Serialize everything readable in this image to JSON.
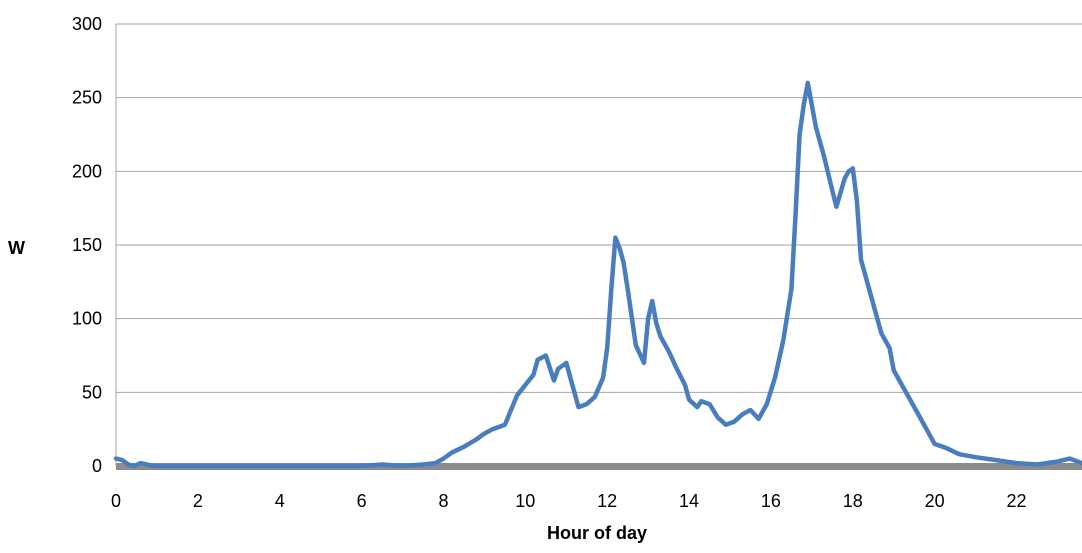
{
  "chart_data": {
    "type": "line",
    "title": "",
    "xlabel": "Hour of day",
    "ylabel": "W",
    "xlim": [
      0,
      23.6
    ],
    "ylim": [
      0,
      300
    ],
    "x_ticks": [
      0,
      2,
      4,
      6,
      8,
      10,
      12,
      14,
      16,
      18,
      20,
      22
    ],
    "y_ticks": [
      0,
      50,
      100,
      150,
      200,
      250,
      300
    ],
    "grid": "horizontal",
    "colors": {
      "series": "#4a7dbe",
      "grid": "#a6a6a6",
      "baseline": "#8c8c8c"
    },
    "series": [
      {
        "x": [
          0,
          0.15,
          0.3,
          0.45,
          0.6,
          0.75,
          0.9,
          1.0,
          2.0,
          4.0,
          6.0,
          6.5,
          7.0,
          7.5,
          7.8,
          8.0,
          8.2,
          8.5,
          8.8,
          9.0,
          9.2,
          9.5,
          9.8,
          10.0,
          10.2,
          10.3,
          10.5,
          10.7,
          10.8,
          11.0,
          11.1,
          11.3,
          11.5,
          11.7,
          11.9,
          12.0,
          12.1,
          12.2,
          12.3,
          12.4,
          12.5,
          12.7,
          12.9,
          13.0,
          13.1,
          13.2,
          13.3,
          13.5,
          13.7,
          13.9,
          14.0,
          14.2,
          14.3,
          14.5,
          14.7,
          14.9,
          15.1,
          15.3,
          15.5,
          15.7,
          15.9,
          16.1,
          16.3,
          16.5,
          16.6,
          16.7,
          16.8,
          16.9,
          17.0,
          17.1,
          17.3,
          17.5,
          17.6,
          17.8,
          17.9,
          18.0,
          18.1,
          18.2,
          18.3,
          18.5,
          18.7,
          18.9,
          19.0,
          19.2,
          19.4,
          19.6,
          19.8,
          20.0,
          20.3,
          20.6,
          21.0,
          21.5,
          22.0,
          22.5,
          23.0,
          23.3,
          23.6
        ],
        "y": [
          5,
          4,
          1,
          0,
          2,
          1,
          0,
          0,
          0,
          0,
          0,
          1,
          0,
          1,
          2,
          5,
          9,
          13,
          18,
          22,
          25,
          28,
          48,
          55,
          62,
          72,
          75,
          58,
          66,
          70,
          60,
          40,
          42,
          47,
          60,
          80,
          120,
          155,
          148,
          138,
          120,
          82,
          70,
          100,
          112,
          97,
          88,
          78,
          66,
          55,
          45,
          40,
          44,
          42,
          33,
          28,
          30,
          35,
          38,
          32,
          42,
          60,
          85,
          120,
          170,
          225,
          245,
          260,
          245,
          230,
          210,
          187,
          176,
          195,
          200,
          202,
          180,
          140,
          130,
          110,
          90,
          80,
          65,
          55,
          45,
          35,
          25,
          15,
          12,
          8,
          6,
          4,
          2,
          1,
          3,
          5,
          2
        ]
      }
    ]
  }
}
